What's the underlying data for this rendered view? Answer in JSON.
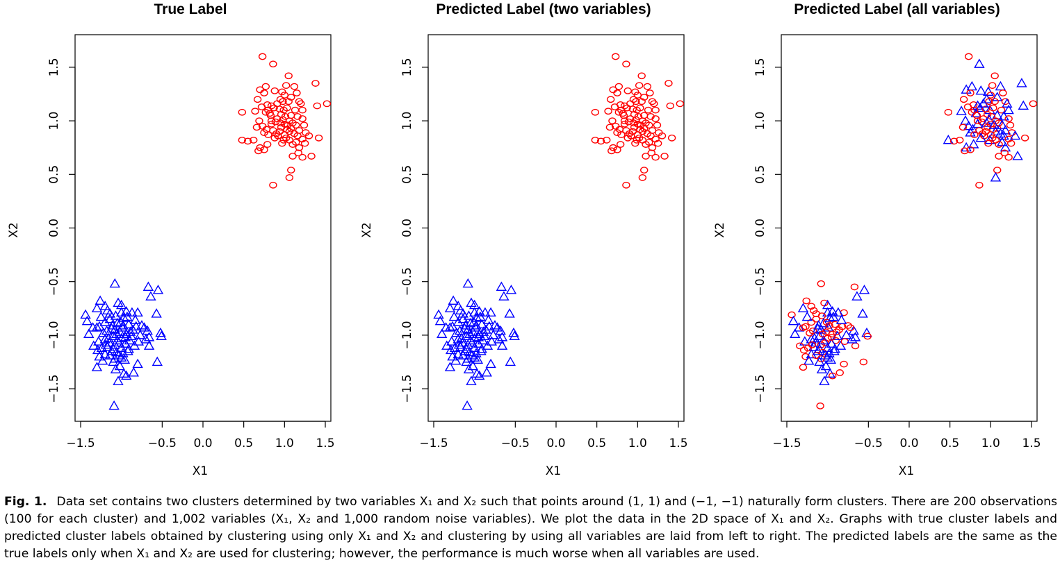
{
  "caption": {
    "label": "Fig. 1.",
    "text": "Data set contains two clusters determined by two variables X₁ and X₂ such that points around (1, 1) and (−1, −1) naturally form clusters. There are 200 observations (100 for each cluster) and 1,002 variables (X₁, X₂ and 1,000 random noise variables). We plot the data in the 2D space of X₁ and X₂. Graphs with true cluster labels and predicted cluster labels obtained by clustering using only X₁ and X₂ and clustering by using all variables are laid from left to right. The predicted labels are the same as the true labels only when X₁ and X₂ are used for clustering; however, the performance is much worse when all variables are used."
  },
  "chart_data": [
    {
      "type": "scatter",
      "title": "True Label",
      "xlabel": "X1",
      "ylabel": "X2",
      "xlim": [
        -1.5,
        1.5
      ],
      "ylim": [
        -1.7,
        1.7
      ],
      "xticks": [
        -1.5,
        -0.5,
        0.0,
        0.5,
        1.0,
        1.5
      ],
      "xtick_labels": [
        "−1.5",
        "−0.5",
        "0.0",
        "0.5",
        "1.0",
        "1.5"
      ],
      "yticks": [
        -1.5,
        -1.0,
        -0.5,
        0.0,
        0.5,
        1.0,
        1.5
      ],
      "ytick_labels": [
        "−1.5",
        "−1.0",
        "−0.5",
        "0.0",
        "0.5",
        "1.0",
        "1.5"
      ],
      "grid": false,
      "legend": "none",
      "mode": "true",
      "colors": {
        "cluster_a": "#ff0000",
        "cluster_b": "#0000ff"
      },
      "markers": {
        "cluster_a": "circle",
        "cluster_b": "triangle"
      }
    },
    {
      "type": "scatter",
      "title": "Predicted Label (two variables)",
      "xlabel": "X1",
      "ylabel": "X2",
      "xlim": [
        -1.5,
        1.5
      ],
      "ylim": [
        -1.7,
        1.7
      ],
      "xticks": [
        -1.5,
        -0.5,
        0.0,
        0.5,
        1.0,
        1.5
      ],
      "xtick_labels": [
        "−1.5",
        "−0.5",
        "0.0",
        "0.5",
        "1.0",
        "1.5"
      ],
      "yticks": [
        -1.5,
        -1.0,
        -0.5,
        0.0,
        0.5,
        1.0,
        1.5
      ],
      "ytick_labels": [
        "−1.5",
        "−1.0",
        "−0.5",
        "0.0",
        "0.5",
        "1.0",
        "1.5"
      ],
      "grid": false,
      "legend": "none",
      "mode": "two",
      "colors": {
        "cluster_a": "#ff0000",
        "cluster_b": "#0000ff"
      },
      "markers": {
        "cluster_a": "circle",
        "cluster_b": "triangle"
      }
    },
    {
      "type": "scatter",
      "title": "Predicted Label (all variables)",
      "xlabel": "X1",
      "ylabel": "X2",
      "xlim": [
        -1.5,
        1.5
      ],
      "ylim": [
        -1.7,
        1.7
      ],
      "xticks": [
        -1.5,
        -0.5,
        0.0,
        0.5,
        1.0,
        1.5
      ],
      "xtick_labels": [
        "−1.5",
        "−0.5",
        "0.0",
        "0.5",
        "1.0",
        "1.5"
      ],
      "yticks": [
        -1.5,
        -1.0,
        -0.5,
        0.0,
        0.5,
        1.0,
        1.5
      ],
      "ytick_labels": [
        "−1.5",
        "−1.0",
        "−0.5",
        "0.0",
        "0.5",
        "1.0",
        "1.5"
      ],
      "grid": false,
      "legend": "none",
      "mode": "all",
      "colors": {
        "cluster_a": "#ff0000",
        "cluster_b": "#0000ff"
      },
      "markers": {
        "cluster_a": "circle",
        "cluster_b": "triangle"
      }
    }
  ],
  "clusters": {
    "cluster_a_points": [
      [
        0.73,
        1.6
      ],
      [
        0.86,
        1.53
      ],
      [
        1.05,
        1.42
      ],
      [
        0.77,
        1.32
      ],
      [
        0.7,
        1.29
      ],
      [
        1.02,
        1.33
      ],
      [
        1.38,
        1.35
      ],
      [
        0.75,
        1.26
      ],
      [
        0.97,
        1.27
      ],
      [
        1.12,
        1.32
      ],
      [
        1.0,
        1.24
      ],
      [
        1.08,
        1.22
      ],
      [
        0.67,
        1.2
      ],
      [
        0.95,
        1.2
      ],
      [
        1.05,
        1.18
      ],
      [
        1.18,
        1.18
      ],
      [
        1.2,
        1.16
      ],
      [
        1.52,
        1.16
      ],
      [
        0.79,
        1.15
      ],
      [
        0.84,
        1.14
      ],
      [
        0.72,
        1.13
      ],
      [
        1.4,
        1.14
      ],
      [
        0.87,
        1.12
      ],
      [
        0.94,
        1.11
      ],
      [
        0.99,
        1.1
      ],
      [
        1.03,
        1.12
      ],
      [
        1.13,
        1.1
      ],
      [
        1.22,
        1.1
      ],
      [
        0.48,
        1.08
      ],
      [
        0.64,
        1.09
      ],
      [
        0.77,
        1.08
      ],
      [
        0.82,
        1.07
      ],
      [
        0.96,
        1.06
      ],
      [
        1.08,
        1.05
      ],
      [
        0.83,
        1.05
      ],
      [
        1.01,
        1.04
      ],
      [
        1.16,
        1.04
      ],
      [
        0.91,
        1.02
      ],
      [
        0.98,
        1.01
      ],
      [
        1.06,
        1.0
      ],
      [
        1.22,
        1.02
      ],
      [
        0.69,
        1.0
      ],
      [
        0.89,
        0.99
      ],
      [
        0.95,
        0.98
      ],
      [
        1.1,
        0.98
      ],
      [
        0.84,
        0.97
      ],
      [
        1.0,
        0.97
      ],
      [
        1.14,
        0.96
      ],
      [
        1.24,
        0.96
      ],
      [
        0.73,
        0.95
      ],
      [
        0.96,
        0.94
      ],
      [
        1.08,
        0.93
      ],
      [
        0.78,
        0.92
      ],
      [
        1.03,
        0.92
      ],
      [
        1.18,
        0.91
      ],
      [
        0.86,
        0.91
      ],
      [
        0.94,
        0.9
      ],
      [
        1.06,
        0.9
      ],
      [
        1.26,
        0.89
      ],
      [
        0.75,
        0.89
      ],
      [
        0.9,
        0.88
      ],
      [
        1.0,
        0.87
      ],
      [
        1.12,
        0.88
      ],
      [
        0.8,
        0.87
      ],
      [
        1.16,
        0.86
      ],
      [
        0.92,
        0.86
      ],
      [
        1.42,
        0.84
      ],
      [
        0.88,
        0.84
      ],
      [
        1.02,
        0.84
      ],
      [
        1.22,
        0.83
      ],
      [
        0.48,
        0.82
      ],
      [
        0.55,
        0.81
      ],
      [
        0.62,
        0.82
      ],
      [
        0.99,
        0.82
      ],
      [
        1.06,
        0.82
      ],
      [
        1.14,
        0.8
      ],
      [
        1.25,
        0.79
      ],
      [
        0.79,
        0.78
      ],
      [
        0.97,
        0.79
      ],
      [
        0.7,
        0.75
      ],
      [
        0.75,
        0.73
      ],
      [
        0.68,
        0.72
      ],
      [
        1.18,
        0.75
      ],
      [
        1.1,
        0.67
      ],
      [
        1.22,
        0.66
      ],
      [
        1.33,
        0.67
      ],
      [
        1.17,
        0.7
      ],
      [
        1.08,
        0.54
      ],
      [
        1.06,
        0.47
      ],
      [
        0.86,
        0.4
      ],
      [
        0.88,
        1.28
      ],
      [
        1.15,
        1.26
      ],
      [
        0.98,
        1.18
      ],
      [
        0.91,
        1.16
      ],
      [
        0.66,
        0.94
      ],
      [
        1.3,
        0.86
      ],
      [
        1.1,
        0.78
      ],
      [
        0.84,
        1.0
      ],
      [
        1.04,
        0.96
      ],
      [
        0.8,
        1.1
      ]
    ],
    "cluster_b_points": [
      [
        -1.08,
        -0.52
      ],
      [
        -0.67,
        -0.55
      ],
      [
        -0.55,
        -0.58
      ],
      [
        -0.64,
        -0.64
      ],
      [
        -1.26,
        -0.68
      ],
      [
        -1.04,
        -0.7
      ],
      [
        -1.0,
        -0.72
      ],
      [
        -1.2,
        -0.73
      ],
      [
        -1.3,
        -0.75
      ],
      [
        -1.17,
        -0.77
      ],
      [
        -0.94,
        -0.78
      ],
      [
        -1.0,
        -0.79
      ],
      [
        -0.8,
        -0.79
      ],
      [
        -0.87,
        -0.79
      ],
      [
        -1.44,
        -0.81
      ],
      [
        -1.07,
        -0.82
      ],
      [
        -0.57,
        -0.8
      ],
      [
        -1.14,
        -0.85
      ],
      [
        -0.97,
        -0.84
      ],
      [
        -1.42,
        -0.87
      ],
      [
        -1.2,
        -0.88
      ],
      [
        -1.05,
        -0.89
      ],
      [
        -0.91,
        -0.9
      ],
      [
        -1.11,
        -0.91
      ],
      [
        -0.82,
        -0.92
      ],
      [
        -0.75,
        -0.91
      ],
      [
        -1.35,
        -0.93
      ],
      [
        -1.3,
        -0.93
      ],
      [
        -0.99,
        -0.93
      ],
      [
        -1.08,
        -0.95
      ],
      [
        -0.86,
        -0.95
      ],
      [
        -1.18,
        -0.96
      ],
      [
        -0.68,
        -0.96
      ],
      [
        -1.02,
        -0.97
      ],
      [
        -1.4,
        -0.99
      ],
      [
        -0.94,
        -0.99
      ],
      [
        -0.52,
        -0.98
      ],
      [
        -0.77,
        -1.0
      ],
      [
        -0.51,
        -1.01
      ],
      [
        -1.1,
        -1.01
      ],
      [
        -0.66,
        -1.02
      ],
      [
        -1.0,
        -1.03
      ],
      [
        -1.2,
        -1.04
      ],
      [
        -0.9,
        -1.05
      ],
      [
        -1.28,
        -1.06
      ],
      [
        -1.15,
        -1.07
      ],
      [
        -1.03,
        -1.07
      ],
      [
        -0.95,
        -1.08
      ],
      [
        -1.08,
        -1.09
      ],
      [
        -0.84,
        -1.1
      ],
      [
        -0.66,
        -1.1
      ],
      [
        -1.17,
        -1.11
      ],
      [
        -1.24,
        -1.12
      ],
      [
        -1.0,
        -1.12
      ],
      [
        -1.1,
        -1.13
      ],
      [
        -1.29,
        -1.14
      ],
      [
        -0.92,
        -1.15
      ],
      [
        -1.06,
        -1.16
      ],
      [
        -0.98,
        -1.17
      ],
      [
        -1.2,
        -1.18
      ],
      [
        -1.14,
        -1.19
      ],
      [
        -1.27,
        -1.2
      ],
      [
        -1.0,
        -1.21
      ],
      [
        -1.08,
        -1.22
      ],
      [
        -0.96,
        -1.23
      ],
      [
        -1.23,
        -1.24
      ],
      [
        -1.1,
        -1.25
      ],
      [
        -0.56,
        -1.25
      ],
      [
        -0.8,
        -1.27
      ],
      [
        -1.02,
        -1.29
      ],
      [
        -1.3,
        -1.3
      ],
      [
        -1.07,
        -1.32
      ],
      [
        -0.85,
        -1.35
      ],
      [
        -0.97,
        -1.36
      ],
      [
        -0.94,
        -1.38
      ],
      [
        -1.04,
        -1.43
      ],
      [
        -1.09,
        -1.66
      ],
      [
        -1.12,
        -0.94
      ],
      [
        -0.88,
        -1.01
      ],
      [
        -1.22,
        -0.98
      ],
      [
        -0.72,
        -0.93
      ],
      [
        -1.16,
        -1.03
      ],
      [
        -1.01,
        -0.88
      ],
      [
        -0.93,
        -0.83
      ],
      [
        -1.34,
        -1.1
      ],
      [
        -1.25,
        -0.83
      ],
      [
        -0.79,
        -1.06
      ],
      [
        -1.05,
        -1.05
      ],
      [
        -0.89,
        -0.97
      ],
      [
        -1.12,
        -1.15
      ],
      [
        -0.98,
        -0.91
      ],
      [
        -1.19,
        -1.09
      ],
      [
        -0.83,
        -0.86
      ],
      [
        -1.06,
        -0.99
      ],
      [
        -0.7,
        -1.04
      ],
      [
        -1.27,
        -0.92
      ],
      [
        -0.91,
        -1.13
      ],
      [
        -1.14,
        -0.8
      ],
      [
        -1.03,
        -1.19
      ],
      [
        -0.95,
        -1.02
      ]
    ],
    "all_mode_swap_a": [
      1,
      3,
      4,
      6,
      8,
      9,
      11,
      13,
      16,
      19,
      21,
      22,
      24,
      27,
      29,
      31,
      33,
      36,
      38,
      41,
      43,
      45,
      47,
      49,
      52,
      54,
      57,
      59,
      62,
      64,
      67,
      70,
      73,
      75,
      77,
      79,
      82,
      85,
      88,
      90,
      93,
      95,
      98
    ],
    "all_mode_swap_b": [
      0,
      1,
      4,
      5,
      7,
      9,
      12,
      14,
      15,
      17,
      20,
      22,
      24,
      25,
      27,
      30,
      31,
      33,
      35,
      38,
      41,
      43,
      46,
      48,
      50,
      52,
      55,
      57,
      60,
      61,
      63,
      67,
      68,
      70,
      72,
      74,
      76,
      79,
      80,
      82,
      84,
      86,
      88,
      90,
      91,
      93,
      95,
      97,
      99
    ]
  }
}
